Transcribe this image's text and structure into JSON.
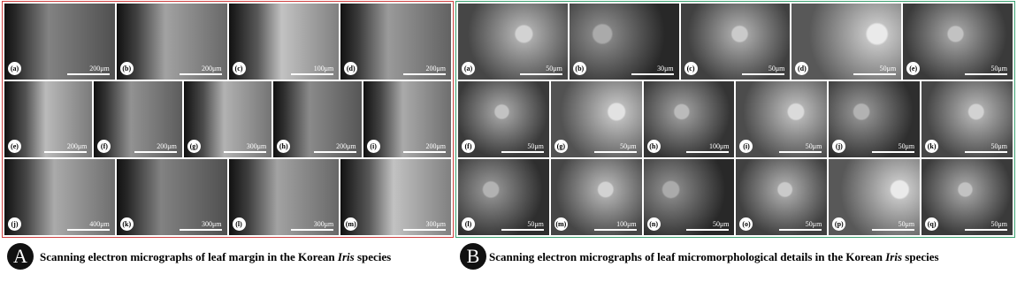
{
  "panels": [
    {
      "label": "A",
      "caption": [
        "Scanning electron micrographs of leaf margin in the Korean ",
        "Iris",
        " species"
      ],
      "rows": [
        [
          {
            "label": "(a)",
            "scale": "200μm"
          },
          {
            "label": "(b)",
            "scale": "200μm"
          },
          {
            "label": "(c)",
            "scale": "100μm"
          },
          {
            "label": "(d)",
            "scale": "200μm"
          }
        ],
        [
          {
            "label": "(e)",
            "scale": "200μm"
          },
          {
            "label": "(f)",
            "scale": "200μm"
          },
          {
            "label": "(g)",
            "scale": "300μm"
          },
          {
            "label": "(h)",
            "scale": "200μm"
          },
          {
            "label": "(i)",
            "scale": "200μm"
          }
        ],
        [
          {
            "label": "(j)",
            "scale": "400μm"
          },
          {
            "label": "(k)",
            "scale": "300μm"
          },
          {
            "label": "(l)",
            "scale": "300μm"
          },
          {
            "label": "(m)",
            "scale": "300μm"
          }
        ]
      ]
    },
    {
      "label": "B",
      "caption": [
        "Scanning electron micrographs of leaf micromorphological details in the Korean ",
        "Iris",
        " species"
      ],
      "rows": [
        [
          {
            "label": "(a)",
            "scale": "50μm"
          },
          {
            "label": "(b)",
            "scale": "30μm"
          },
          {
            "label": "(c)",
            "scale": "50μm"
          },
          {
            "label": "(d)",
            "scale": "50μm"
          },
          {
            "label": "(e)",
            "scale": "50μm"
          }
        ],
        [
          {
            "label": "(f)",
            "scale": "50μm"
          },
          {
            "label": "(g)",
            "scale": "50μm"
          },
          {
            "label": "(h)",
            "scale": "100μm"
          },
          {
            "label": "(i)",
            "scale": "50μm"
          },
          {
            "label": "(j)",
            "scale": "50μm"
          },
          {
            "label": "(k)",
            "scale": "50μm"
          }
        ],
        [
          {
            "label": "(l)",
            "scale": "50μm"
          },
          {
            "label": "(m)",
            "scale": "100μm"
          },
          {
            "label": "(n)",
            "scale": "50μm"
          },
          {
            "label": "(o)",
            "scale": "50μm"
          },
          {
            "label": "(p)",
            "scale": "50μm"
          },
          {
            "label": "(q)",
            "scale": "50μm"
          }
        ]
      ]
    }
  ]
}
